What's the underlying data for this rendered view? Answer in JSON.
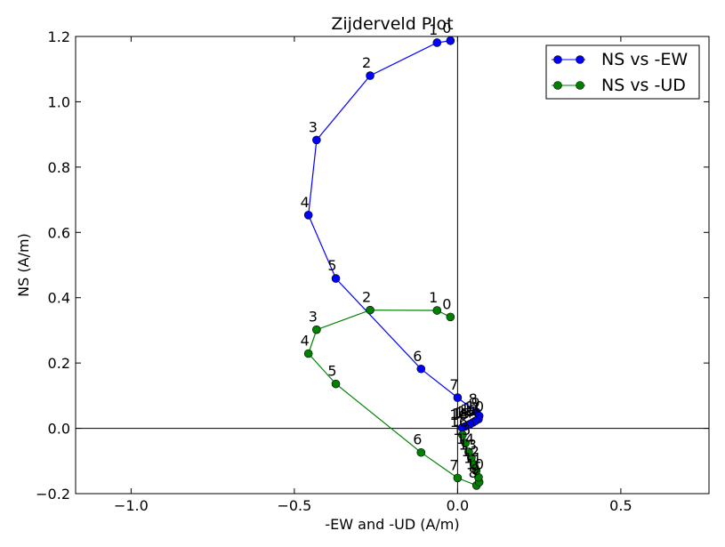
{
  "chart_data": {
    "type": "line",
    "title": "Zijderveld Plot",
    "xlabel": "-EW and -UD (A/m)",
    "ylabel": "NS (A/m)",
    "xlim": [
      -1.17,
      0.77
    ],
    "ylim": [
      -0.2,
      1.2
    ],
    "x_ticks": [
      -1.0,
      -0.5,
      0.0,
      0.5
    ],
    "x_tick_labels": [
      "−1.0",
      "−0.5",
      "0.0",
      "0.5"
    ],
    "y_ticks": [
      -0.2,
      0.0,
      0.2,
      0.4,
      0.6,
      0.8,
      1.0,
      1.2
    ],
    "y_tick_labels": [
      "−0.2",
      "0.0",
      "0.2",
      "0.4",
      "0.6",
      "0.8",
      "1.0",
      "1.2"
    ],
    "grid": false,
    "legend_position": "top-right",
    "series": [
      {
        "name": "NS vs -EW",
        "color": "#0000ff",
        "points": [
          {
            "label": "0",
            "x": -0.022,
            "y": 1.187
          },
          {
            "label": "1",
            "x": -0.063,
            "y": 1.181
          },
          {
            "label": "2",
            "x": -0.268,
            "y": 1.08
          },
          {
            "label": "3",
            "x": -0.432,
            "y": 0.883
          },
          {
            "label": "4",
            "x": -0.457,
            "y": 0.653
          },
          {
            "label": "5",
            "x": -0.373,
            "y": 0.459
          },
          {
            "label": "6",
            "x": -0.112,
            "y": 0.182
          },
          {
            "label": "7",
            "x": 0.0,
            "y": 0.094
          },
          {
            "label": "8",
            "x": 0.058,
            "y": 0.05
          },
          {
            "label": "9",
            "x": 0.066,
            "y": 0.038
          },
          {
            "label": "10",
            "x": 0.064,
            "y": 0.028
          },
          {
            "label": "11",
            "x": 0.055,
            "y": 0.023
          },
          {
            "label": "12",
            "x": 0.047,
            "y": 0.018
          },
          {
            "label": "13",
            "x": 0.038,
            "y": 0.013
          },
          {
            "label": "14",
            "x": 0.03,
            "y": 0.009
          },
          {
            "label": "15",
            "x": 0.021,
            "y": 0.005
          },
          {
            "label": "16",
            "x": 0.014,
            "y": 0.002
          }
        ]
      },
      {
        "name": "NS vs -UD",
        "color": "#008000",
        "points": [
          {
            "label": "0",
            "x": -0.022,
            "y": 0.341
          },
          {
            "label": "1",
            "x": -0.063,
            "y": 0.361
          },
          {
            "label": "2",
            "x": -0.268,
            "y": 0.362
          },
          {
            "label": "3",
            "x": -0.432,
            "y": 0.302
          },
          {
            "label": "4",
            "x": -0.457,
            "y": 0.229
          },
          {
            "label": "5",
            "x": -0.373,
            "y": 0.136
          },
          {
            "label": "6",
            "x": -0.112,
            "y": -0.074
          },
          {
            "label": "7",
            "x": 0.0,
            "y": -0.152
          },
          {
            "label": "8",
            "x": 0.058,
            "y": -0.175
          },
          {
            "label": "9",
            "x": 0.066,
            "y": -0.165
          },
          {
            "label": "10",
            "x": 0.064,
            "y": -0.15
          },
          {
            "label": "11",
            "x": 0.057,
            "y": -0.13
          },
          {
            "label": "12",
            "x": 0.05,
            "y": -0.11
          },
          {
            "label": "13",
            "x": 0.042,
            "y": -0.09
          },
          {
            "label": "14",
            "x": 0.034,
            "y": -0.072
          },
          {
            "label": "15",
            "x": 0.024,
            "y": -0.045
          },
          {
            "label": "16",
            "x": 0.015,
            "y": -0.02
          }
        ]
      }
    ]
  }
}
